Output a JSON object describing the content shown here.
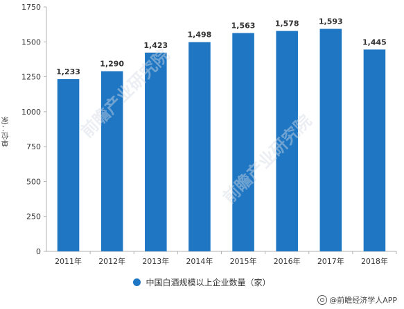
{
  "chart_data": {
    "type": "bar",
    "categories": [
      "2011年",
      "2012年",
      "2013年",
      "2014年",
      "2015年",
      "2016年",
      "2017年",
      "2018年"
    ],
    "series": [
      {
        "name": "中国白酒规模以上企业数量（家）",
        "values": [
          1233,
          1290,
          1423,
          1498,
          1563,
          1578,
          1593,
          1445
        ],
        "color": "#1f77c4"
      }
    ],
    "data_labels": [
      "1,233",
      "1,290",
      "1,423",
      "1,498",
      "1,563",
      "1,578",
      "1,593",
      "1,445"
    ],
    "ylabel": "单位：家",
    "ylim": [
      0,
      1750
    ],
    "yticks": [
      0,
      250,
      500,
      750,
      1000,
      1250,
      1500,
      1750
    ],
    "grid": false,
    "legend_position": "bottom-center"
  },
  "watermark": {
    "text": "@前瞻经济学人APP",
    "background_text": "前瞻产业研究院"
  }
}
